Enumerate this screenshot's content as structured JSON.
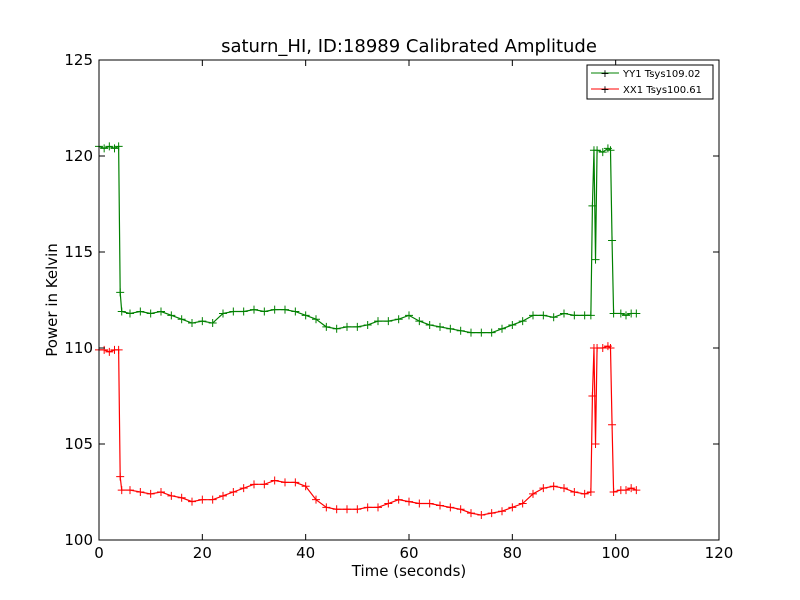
{
  "chart_data": {
    "type": "line",
    "title": "saturn_HI, ID:18989 Calibrated Amplitude",
    "xlabel": "Time (seconds)",
    "ylabel": "Power in Kelvin",
    "xlim": [
      0,
      120
    ],
    "ylim": [
      100,
      125
    ],
    "xticks": [
      0,
      20,
      40,
      60,
      80,
      100,
      120
    ],
    "yticks": [
      100,
      105,
      110,
      115,
      120,
      125
    ],
    "grid": false,
    "legend_position": "top-right",
    "marker": "+",
    "series": [
      {
        "name": "YY1 Tsys109.02",
        "color": "#008000",
        "points": [
          [
            0,
            120.5
          ],
          [
            1,
            120.4
          ],
          [
            2,
            120.5
          ],
          [
            3,
            120.4
          ],
          [
            3.8,
            120.5
          ],
          [
            4.1,
            112.9
          ],
          [
            4.4,
            111.9
          ],
          [
            6,
            111.8
          ],
          [
            8,
            111.9
          ],
          [
            10,
            111.8
          ],
          [
            12,
            111.9
          ],
          [
            14,
            111.7
          ],
          [
            16,
            111.5
          ],
          [
            18,
            111.3
          ],
          [
            20,
            111.4
          ],
          [
            22,
            111.3
          ],
          [
            24,
            111.8
          ],
          [
            26,
            111.9
          ],
          [
            28,
            111.9
          ],
          [
            30,
            112.0
          ],
          [
            32,
            111.9
          ],
          [
            34,
            112.0
          ],
          [
            36,
            112.0
          ],
          [
            38,
            111.9
          ],
          [
            40,
            111.7
          ],
          [
            42,
            111.5
          ],
          [
            44,
            111.1
          ],
          [
            46,
            111.0
          ],
          [
            48,
            111.1
          ],
          [
            50,
            111.1
          ],
          [
            52,
            111.2
          ],
          [
            54,
            111.4
          ],
          [
            56,
            111.4
          ],
          [
            58,
            111.5
          ],
          [
            60,
            111.7
          ],
          [
            62,
            111.4
          ],
          [
            64,
            111.2
          ],
          [
            66,
            111.1
          ],
          [
            68,
            111.0
          ],
          [
            70,
            110.9
          ],
          [
            72,
            110.8
          ],
          [
            74,
            110.8
          ],
          [
            76,
            110.8
          ],
          [
            78,
            111.0
          ],
          [
            80,
            111.2
          ],
          [
            82,
            111.4
          ],
          [
            84,
            111.7
          ],
          [
            86,
            111.7
          ],
          [
            88,
            111.6
          ],
          [
            90,
            111.8
          ],
          [
            92,
            111.7
          ],
          [
            94,
            111.7
          ],
          [
            95.2,
            111.7
          ],
          [
            95.5,
            117.4
          ],
          [
            95.8,
            120.3
          ],
          [
            96.1,
            114.6
          ],
          [
            96.4,
            120.3
          ],
          [
            97.5,
            120.2
          ],
          [
            98.5,
            120.4
          ],
          [
            99,
            120.3
          ],
          [
            99.3,
            115.6
          ],
          [
            99.6,
            111.8
          ],
          [
            101,
            111.8
          ],
          [
            102,
            111.7
          ],
          [
            103,
            111.8
          ],
          [
            104,
            111.8
          ]
        ]
      },
      {
        "name": "XX1 Tsys100.61",
        "color": "#ff0000",
        "points": [
          [
            0,
            109.9
          ],
          [
            1,
            109.9
          ],
          [
            2,
            109.8
          ],
          [
            3,
            109.9
          ],
          [
            3.8,
            109.9
          ],
          [
            4.1,
            103.3
          ],
          [
            4.4,
            102.6
          ],
          [
            6,
            102.6
          ],
          [
            8,
            102.5
          ],
          [
            10,
            102.4
          ],
          [
            12,
            102.5
          ],
          [
            14,
            102.3
          ],
          [
            16,
            102.2
          ],
          [
            18,
            102.0
          ],
          [
            20,
            102.1
          ],
          [
            22,
            102.1
          ],
          [
            24,
            102.3
          ],
          [
            26,
            102.5
          ],
          [
            28,
            102.7
          ],
          [
            30,
            102.9
          ],
          [
            32,
            102.9
          ],
          [
            34,
            103.1
          ],
          [
            36,
            103.0
          ],
          [
            38,
            103.0
          ],
          [
            40,
            102.8
          ],
          [
            42,
            102.1
          ],
          [
            44,
            101.7
          ],
          [
            46,
            101.6
          ],
          [
            48,
            101.6
          ],
          [
            50,
            101.6
          ],
          [
            52,
            101.7
          ],
          [
            54,
            101.7
          ],
          [
            56,
            101.9
          ],
          [
            58,
            102.1
          ],
          [
            60,
            102.0
          ],
          [
            62,
            101.9
          ],
          [
            64,
            101.9
          ],
          [
            66,
            101.8
          ],
          [
            68,
            101.7
          ],
          [
            70,
            101.6
          ],
          [
            72,
            101.4
          ],
          [
            74,
            101.3
          ],
          [
            76,
            101.4
          ],
          [
            78,
            101.5
          ],
          [
            80,
            101.7
          ],
          [
            82,
            101.9
          ],
          [
            84,
            102.4
          ],
          [
            86,
            102.7
          ],
          [
            88,
            102.8
          ],
          [
            90,
            102.7
          ],
          [
            92,
            102.5
          ],
          [
            94,
            102.4
          ],
          [
            95.2,
            102.5
          ],
          [
            95.5,
            107.5
          ],
          [
            95.8,
            110.0
          ],
          [
            96.1,
            105.0
          ],
          [
            96.4,
            110.0
          ],
          [
            97.5,
            110.0
          ],
          [
            98.5,
            110.1
          ],
          [
            99,
            110.0
          ],
          [
            99.3,
            106.0
          ],
          [
            99.6,
            102.5
          ],
          [
            101,
            102.6
          ],
          [
            102,
            102.6
          ],
          [
            103,
            102.7
          ],
          [
            104,
            102.6
          ]
        ]
      }
    ]
  }
}
